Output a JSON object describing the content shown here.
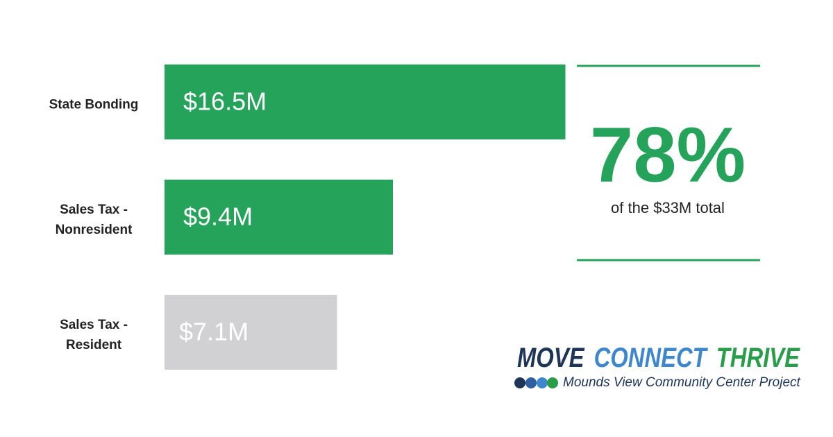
{
  "chart_data": {
    "type": "bar",
    "orientation": "horizontal",
    "categories": [
      "State Bonding",
      "Sales Tax - Nonresident",
      "Sales Tax - Resident"
    ],
    "values": [
      16.5,
      9.4,
      7.1
    ],
    "value_labels": [
      "$16.5M",
      "$9.4M",
      "$7.1M"
    ],
    "colors": [
      "#26a35a",
      "#26a35a",
      "#d1d1d4"
    ],
    "annotations": {
      "percent": "78%",
      "caption": "of the $33M total"
    }
  },
  "logo": {
    "move": "MOVE",
    "connect": "CONNECT",
    "thrive": "THRIVE",
    "tagline": "Mounds View Community Center Project"
  }
}
